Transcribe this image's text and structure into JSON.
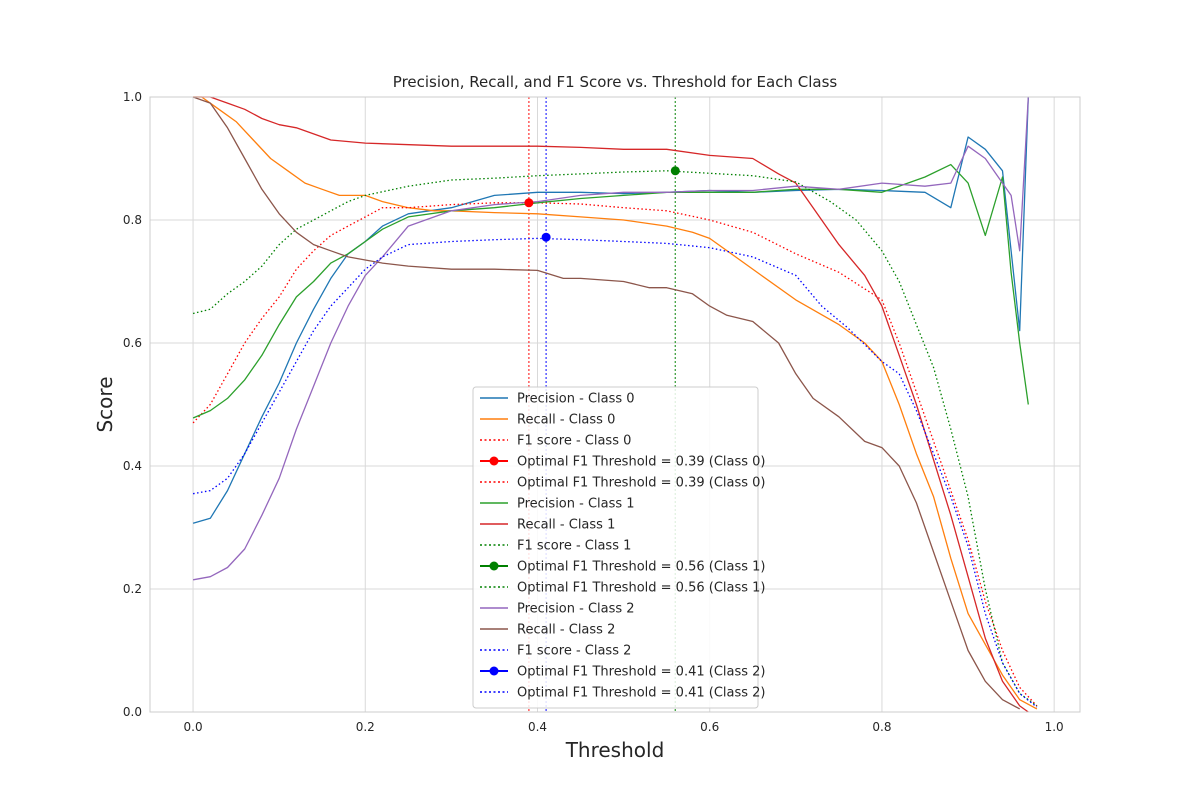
{
  "chart_data": {
    "type": "line",
    "title": "Precision, Recall, and F1 Score vs. Threshold for Each Class",
    "xlabel": "Threshold",
    "ylabel": "Score",
    "xlim": [
      -0.05,
      1.03
    ],
    "ylim": [
      0.0,
      1.0
    ],
    "xticks": [
      0.0,
      0.2,
      0.4,
      0.6,
      0.8,
      1.0
    ],
    "xtick_labels": [
      "0.0",
      "0.2",
      "0.4",
      "0.6",
      "0.8",
      "1.0"
    ],
    "yticks": [
      0.0,
      0.2,
      0.4,
      0.6,
      0.8,
      1.0
    ],
    "ytick_labels": [
      "0.0",
      "0.2",
      "0.4",
      "0.6",
      "0.8",
      "1.0"
    ],
    "grid": true,
    "legend_position": "lower-center",
    "series": [
      {
        "name": "Precision - Class 0",
        "color": "#1f77b4",
        "style": "solid",
        "x": [
          0.0,
          0.02,
          0.04,
          0.06,
          0.08,
          0.1,
          0.12,
          0.14,
          0.16,
          0.18,
          0.2,
          0.22,
          0.25,
          0.3,
          0.35,
          0.4,
          0.45,
          0.5,
          0.55,
          0.6,
          0.65,
          0.7,
          0.75,
          0.8,
          0.85,
          0.88,
          0.9,
          0.92,
          0.94,
          0.96,
          0.97
        ],
        "y": [
          0.307,
          0.315,
          0.36,
          0.42,
          0.48,
          0.535,
          0.6,
          0.655,
          0.705,
          0.745,
          0.765,
          0.79,
          0.81,
          0.82,
          0.84,
          0.845,
          0.845,
          0.843,
          0.845,
          0.848,
          0.845,
          0.848,
          0.85,
          0.848,
          0.845,
          0.82,
          0.935,
          0.915,
          0.88,
          0.62,
          1.0
        ]
      },
      {
        "name": "Recall - Class 0",
        "color": "#ff7f0e",
        "style": "solid",
        "x": [
          0.0,
          0.01,
          0.03,
          0.05,
          0.07,
          0.09,
          0.11,
          0.13,
          0.15,
          0.17,
          0.2,
          0.22,
          0.25,
          0.28,
          0.3,
          0.35,
          0.4,
          0.45,
          0.5,
          0.55,
          0.58,
          0.6,
          0.63,
          0.66,
          0.7,
          0.75,
          0.78,
          0.8,
          0.82,
          0.84,
          0.86,
          0.88,
          0.9,
          0.92,
          0.94,
          0.96,
          0.98
        ],
        "y": [
          1.0,
          1.0,
          0.98,
          0.96,
          0.93,
          0.9,
          0.88,
          0.86,
          0.85,
          0.84,
          0.84,
          0.83,
          0.82,
          0.815,
          0.815,
          0.812,
          0.81,
          0.805,
          0.8,
          0.79,
          0.78,
          0.77,
          0.74,
          0.71,
          0.67,
          0.63,
          0.6,
          0.57,
          0.5,
          0.42,
          0.35,
          0.25,
          0.16,
          0.11,
          0.06,
          0.02,
          0.005
        ]
      },
      {
        "name": "F1 score - Class 0",
        "color": "#ff0000",
        "style": "dotted",
        "x": [
          0.0,
          0.02,
          0.04,
          0.06,
          0.08,
          0.1,
          0.12,
          0.14,
          0.16,
          0.18,
          0.2,
          0.22,
          0.25,
          0.3,
          0.35,
          0.4,
          0.45,
          0.5,
          0.55,
          0.6,
          0.65,
          0.7,
          0.75,
          0.8,
          0.82,
          0.84,
          0.86,
          0.88,
          0.9,
          0.92,
          0.94,
          0.96,
          0.98
        ],
        "y": [
          0.47,
          0.5,
          0.55,
          0.6,
          0.64,
          0.675,
          0.72,
          0.75,
          0.775,
          0.79,
          0.805,
          0.82,
          0.82,
          0.825,
          0.828,
          0.828,
          0.826,
          0.82,
          0.815,
          0.8,
          0.78,
          0.745,
          0.715,
          0.67,
          0.6,
          0.52,
          0.44,
          0.36,
          0.28,
          0.18,
          0.1,
          0.04,
          0.01
        ]
      },
      {
        "name": "Precision - Class 1",
        "color": "#2ca02c",
        "style": "solid",
        "x": [
          0.0,
          0.02,
          0.04,
          0.06,
          0.08,
          0.1,
          0.12,
          0.14,
          0.16,
          0.18,
          0.2,
          0.22,
          0.25,
          0.3,
          0.35,
          0.4,
          0.45,
          0.5,
          0.55,
          0.6,
          0.65,
          0.7,
          0.75,
          0.8,
          0.85,
          0.88,
          0.9,
          0.92,
          0.94,
          0.95,
          0.96,
          0.97
        ],
        "y": [
          0.478,
          0.49,
          0.51,
          0.54,
          0.58,
          0.63,
          0.675,
          0.7,
          0.73,
          0.745,
          0.765,
          0.785,
          0.805,
          0.815,
          0.82,
          0.828,
          0.835,
          0.84,
          0.845,
          0.845,
          0.845,
          0.85,
          0.85,
          0.845,
          0.87,
          0.89,
          0.86,
          0.775,
          0.87,
          0.715,
          0.6,
          0.5
        ]
      },
      {
        "name": "Recall - Class 1",
        "color": "#d62728",
        "style": "solid",
        "x": [
          0.0,
          0.02,
          0.04,
          0.06,
          0.08,
          0.1,
          0.12,
          0.14,
          0.16,
          0.2,
          0.3,
          0.4,
          0.45,
          0.5,
          0.55,
          0.6,
          0.65,
          0.68,
          0.7,
          0.72,
          0.75,
          0.78,
          0.8,
          0.82,
          0.84,
          0.86,
          0.88,
          0.9,
          0.92,
          0.94,
          0.96,
          0.97
        ],
        "y": [
          1.0,
          1.0,
          0.99,
          0.98,
          0.965,
          0.955,
          0.95,
          0.94,
          0.93,
          0.925,
          0.92,
          0.92,
          0.918,
          0.915,
          0.915,
          0.905,
          0.9,
          0.875,
          0.86,
          0.82,
          0.76,
          0.71,
          0.66,
          0.58,
          0.5,
          0.41,
          0.32,
          0.22,
          0.12,
          0.05,
          0.01,
          0.0
        ]
      },
      {
        "name": "F1 score - Class 1",
        "color": "#008000",
        "style": "dotted",
        "x": [
          0.0,
          0.02,
          0.04,
          0.06,
          0.08,
          0.1,
          0.12,
          0.14,
          0.16,
          0.18,
          0.2,
          0.25,
          0.3,
          0.35,
          0.4,
          0.45,
          0.5,
          0.55,
          0.6,
          0.65,
          0.7,
          0.74,
          0.77,
          0.8,
          0.82,
          0.84,
          0.86,
          0.88,
          0.9,
          0.92,
          0.94,
          0.96,
          0.98
        ],
        "y": [
          0.648,
          0.655,
          0.68,
          0.7,
          0.725,
          0.76,
          0.785,
          0.8,
          0.815,
          0.83,
          0.84,
          0.855,
          0.865,
          0.868,
          0.872,
          0.875,
          0.878,
          0.88,
          0.876,
          0.872,
          0.862,
          0.83,
          0.8,
          0.75,
          0.7,
          0.63,
          0.56,
          0.46,
          0.35,
          0.2,
          0.08,
          0.03,
          0.01
        ]
      },
      {
        "name": "Precision - Class 2",
        "color": "#9467bd",
        "style": "solid",
        "x": [
          0.0,
          0.02,
          0.04,
          0.06,
          0.08,
          0.1,
          0.12,
          0.14,
          0.16,
          0.18,
          0.2,
          0.22,
          0.25,
          0.3,
          0.35,
          0.4,
          0.45,
          0.5,
          0.55,
          0.6,
          0.65,
          0.7,
          0.75,
          0.8,
          0.85,
          0.88,
          0.9,
          0.92,
          0.94,
          0.95,
          0.96,
          0.97
        ],
        "y": [
          0.215,
          0.22,
          0.235,
          0.265,
          0.32,
          0.38,
          0.46,
          0.53,
          0.6,
          0.66,
          0.71,
          0.74,
          0.79,
          0.815,
          0.825,
          0.83,
          0.84,
          0.845,
          0.845,
          0.848,
          0.848,
          0.855,
          0.85,
          0.86,
          0.855,
          0.86,
          0.92,
          0.9,
          0.86,
          0.84,
          0.75,
          1.0
        ]
      },
      {
        "name": "Recall - Class 2",
        "color": "#8c564b",
        "style": "solid",
        "x": [
          0.0,
          0.02,
          0.04,
          0.06,
          0.08,
          0.1,
          0.12,
          0.14,
          0.16,
          0.18,
          0.2,
          0.22,
          0.25,
          0.3,
          0.35,
          0.4,
          0.43,
          0.45,
          0.5,
          0.53,
          0.55,
          0.58,
          0.6,
          0.62,
          0.65,
          0.68,
          0.7,
          0.72,
          0.75,
          0.78,
          0.8,
          0.82,
          0.84,
          0.86,
          0.88,
          0.9,
          0.92,
          0.94,
          0.96
        ],
        "y": [
          1.0,
          0.99,
          0.95,
          0.9,
          0.85,
          0.81,
          0.78,
          0.76,
          0.75,
          0.74,
          0.735,
          0.73,
          0.725,
          0.72,
          0.72,
          0.718,
          0.705,
          0.705,
          0.7,
          0.69,
          0.69,
          0.68,
          0.66,
          0.645,
          0.635,
          0.6,
          0.55,
          0.51,
          0.48,
          0.44,
          0.43,
          0.4,
          0.34,
          0.26,
          0.18,
          0.1,
          0.05,
          0.02,
          0.005
        ]
      },
      {
        "name": "F1 score - Class 2",
        "color": "#0000ff",
        "style": "dotted",
        "x": [
          0.0,
          0.02,
          0.04,
          0.06,
          0.08,
          0.1,
          0.12,
          0.14,
          0.16,
          0.18,
          0.2,
          0.22,
          0.25,
          0.3,
          0.35,
          0.4,
          0.45,
          0.5,
          0.55,
          0.6,
          0.65,
          0.7,
          0.73,
          0.76,
          0.8,
          0.82,
          0.84,
          0.86,
          0.88,
          0.9,
          0.92,
          0.94,
          0.96,
          0.98
        ],
        "y": [
          0.355,
          0.36,
          0.38,
          0.42,
          0.47,
          0.52,
          0.57,
          0.62,
          0.66,
          0.69,
          0.72,
          0.74,
          0.76,
          0.765,
          0.768,
          0.77,
          0.768,
          0.765,
          0.762,
          0.755,
          0.74,
          0.71,
          0.66,
          0.625,
          0.57,
          0.55,
          0.49,
          0.42,
          0.35,
          0.27,
          0.16,
          0.08,
          0.03,
          0.008
        ]
      }
    ],
    "optimal_thresholds": [
      {
        "name": "Optimal F1 Threshold = 0.39 (Class 0)",
        "marker_label": "Optimal F1 Threshold = 0.39 (Class 0)",
        "threshold": 0.39,
        "f1": 0.828,
        "color": "#ff0000"
      },
      {
        "name": "Optimal F1 Threshold = 0.56 (Class 1)",
        "marker_label": "Optimal F1 Threshold = 0.56 (Class 1)",
        "threshold": 0.56,
        "f1": 0.88,
        "color": "#008000"
      },
      {
        "name": "Optimal F1 Threshold = 0.41 (Class 2)",
        "marker_label": "Optimal F1 Threshold = 0.41 (Class 2)",
        "threshold": 0.41,
        "f1": 0.772,
        "color": "#0000ff"
      }
    ],
    "legend": [
      {
        "label": "Precision - Class 0",
        "color": "#1f77b4",
        "kind": "solid"
      },
      {
        "label": "Recall - Class 0",
        "color": "#ff7f0e",
        "kind": "solid"
      },
      {
        "label": "F1 score - Class 0",
        "color": "#ff0000",
        "kind": "dotted"
      },
      {
        "label": "Optimal F1 Threshold = 0.39 (Class 0)",
        "color": "#ff0000",
        "kind": "marker"
      },
      {
        "label": "Optimal F1 Threshold = 0.39 (Class 0)",
        "color": "#ff0000",
        "kind": "dotted"
      },
      {
        "label": "Precision - Class 1",
        "color": "#2ca02c",
        "kind": "solid"
      },
      {
        "label": "Recall - Class 1",
        "color": "#d62728",
        "kind": "solid"
      },
      {
        "label": "F1 score - Class 1",
        "color": "#008000",
        "kind": "dotted"
      },
      {
        "label": "Optimal F1 Threshold = 0.56 (Class 1)",
        "color": "#008000",
        "kind": "marker"
      },
      {
        "label": "Optimal F1 Threshold = 0.56 (Class 1)",
        "color": "#008000",
        "kind": "dotted"
      },
      {
        "label": "Precision - Class 2",
        "color": "#9467bd",
        "kind": "solid"
      },
      {
        "label": "Recall - Class 2",
        "color": "#8c564b",
        "kind": "solid"
      },
      {
        "label": "F1 score - Class 2",
        "color": "#0000ff",
        "kind": "dotted"
      },
      {
        "label": "Optimal F1 Threshold = 0.41 (Class 2)",
        "color": "#0000ff",
        "kind": "marker"
      },
      {
        "label": "Optimal F1 Threshold = 0.41 (Class 2)",
        "color": "#0000ff",
        "kind": "dotted"
      }
    ]
  }
}
